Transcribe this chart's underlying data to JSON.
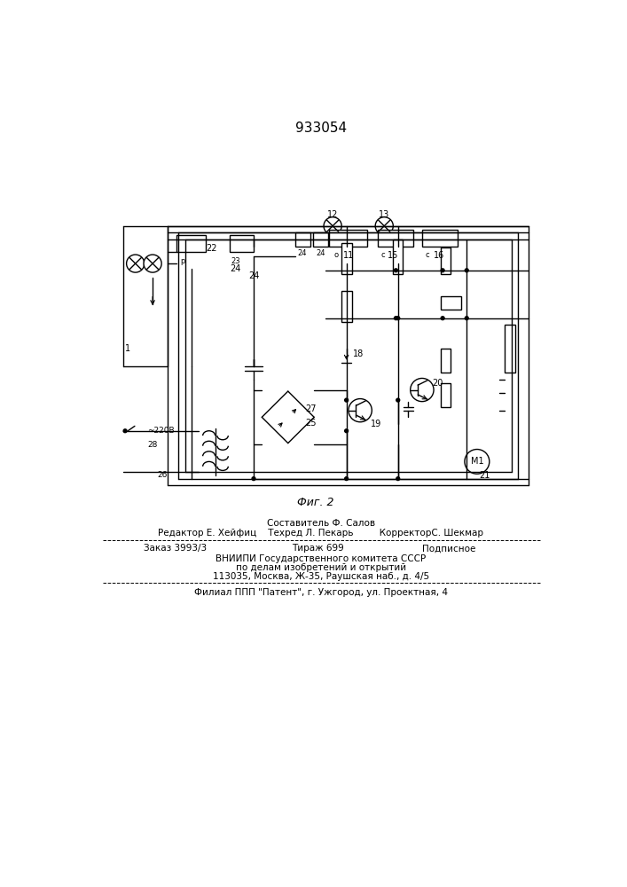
{
  "patent_number": "933054",
  "fig_label": "Фиг. 2",
  "bg_color": "#ffffff",
  "footer": {
    "line1": "Составитель Ф. Салов",
    "line2": "Редактор Е. Хейфиц    Техред Л. Пекарь         КорректорС. Шекмар",
    "line3a": "Заказ 3993/3",
    "line3b": "Тираж 699",
    "line3c": "Подписное",
    "line4": "ВНИИПИ Государственного комитета СССР",
    "line5": "по делам изобретений и открытий",
    "line6": "113035, Москва, Ж-35, Раушская наб., д. 4/5",
    "line7": "Филиал ППП \"Патент\", г. Ужгород, ул. Проектная, 4"
  }
}
